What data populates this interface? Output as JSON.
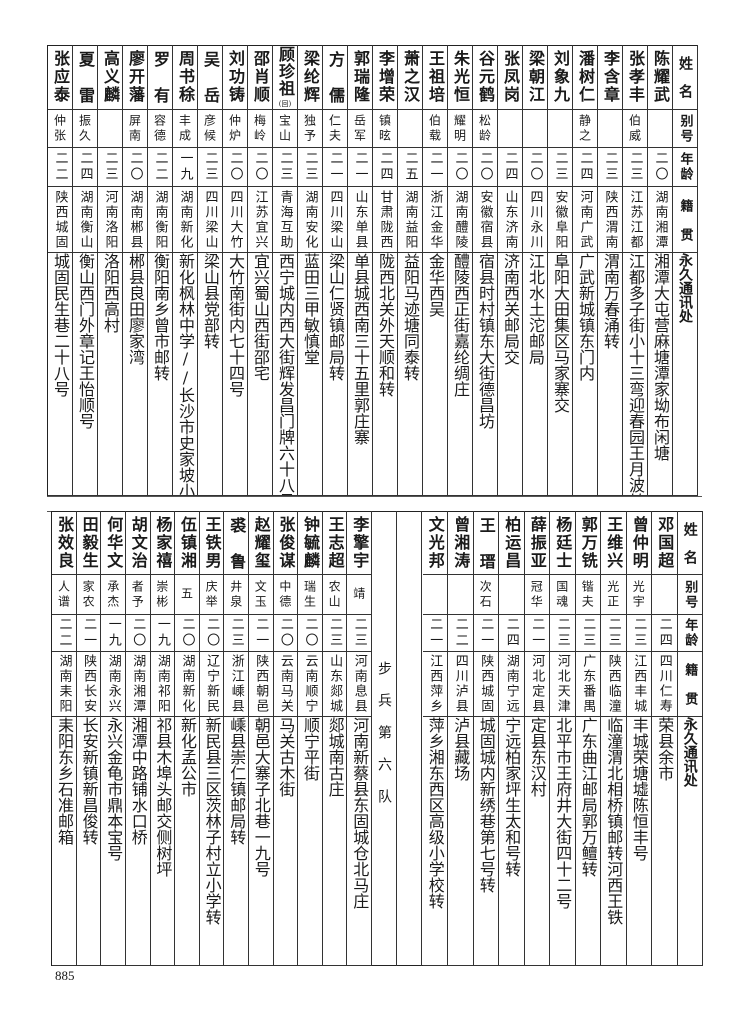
{
  "headers": {
    "name": "姓名",
    "alias": "别号",
    "age": "年龄",
    "origin": "籍贯",
    "address": "永久通讯处"
  },
  "top_rows": [
    {
      "name": "陈耀武",
      "alias": "",
      "age": "二〇",
      "origin": "湖南湘潭",
      "address": "湘潭大屯营麻塘潭家坳布闲塘"
    },
    {
      "name": "张孝丰",
      "alias": "伯威",
      "age": "二三",
      "origin": "江苏江都",
      "address": "江都多子街小十三弯迎春园王月波转"
    },
    {
      "name": "李含章",
      "alias": "",
      "age": "二三",
      "origin": "陕西渭南",
      "address": "渭南万春涌转"
    },
    {
      "name": "潘树仁",
      "alias": "静之",
      "age": "二四",
      "origin": "河南广武",
      "address": "广武新城镇东门内"
    },
    {
      "name": "刘象九",
      "alias": "",
      "age": "二三",
      "origin": "安徽阜阳",
      "address": "阜阳大田集区马家寨交"
    },
    {
      "name": "梁朝江",
      "alias": "",
      "age": "二〇",
      "origin": "四川永川",
      "address": "江北水土沱邮局"
    },
    {
      "name": "张凤岗",
      "alias": "",
      "age": "二四",
      "origin": "山东济南",
      "address": "济南西关邮局交"
    },
    {
      "name": "谷元鹤",
      "alias": "松龄",
      "age": "二〇",
      "origin": "安徽宿县",
      "address": "宿县时村镇东大街德昌坊"
    },
    {
      "name": "朱光恒",
      "alias": "耀明",
      "age": "二〇",
      "origin": "湖南醴陵",
      "address": "醴陵西正街嘉纶绸庄"
    },
    {
      "name": "王祖培",
      "alias": "伯载",
      "age": "二一",
      "origin": "浙江金华",
      "address": "金华西吴"
    },
    {
      "name": "萧之汉",
      "alias": "",
      "age": "二五",
      "origin": "湖南益阳",
      "address": "益阳马迹塘同泰转"
    },
    {
      "name": "李增荣",
      "alias": "镇昡",
      "age": "二四",
      "origin": "甘肃陇西",
      "address": "陇西北关外天顺和转"
    },
    {
      "name": "郭瑞隆",
      "alias": "岳军",
      "age": "二一",
      "origin": "山东单县",
      "address": "单县城西南三十五里郭庄寨"
    },
    {
      "name": "方儒",
      "alias": "仁夫",
      "age": "二一",
      "origin": "四川梁山",
      "address": "梁山仁贤镇邮局转"
    },
    {
      "name": "梁纶辉",
      "alias": "独予",
      "age": "二三",
      "origin": "湖南安化",
      "address": "蓝田三甲敏慎堂"
    },
    {
      "name": "顾珍祖",
      "note": "(回)",
      "alias": "宝山",
      "age": "二三",
      "origin": "青海互助",
      "address": "西宁城内西大街辉发昌门牌六十八号"
    },
    {
      "name": "邵肖顺",
      "alias": "梅岭",
      "age": "二〇",
      "origin": "江苏宜兴",
      "address": "宜兴蜀山西街邵宅"
    },
    {
      "name": "刘功铸",
      "alias": "仲炉",
      "age": "二〇",
      "origin": "四川大竹",
      "address": "大竹南街内七十四号"
    },
    {
      "name": "吴岳",
      "alias": "彦候",
      "age": "二三",
      "origin": "四川梁山",
      "address": "梁山县党部转"
    },
    {
      "name": "周书稌",
      "alias": "丰成",
      "age": "一九",
      "origin": "湖南新化",
      "address": "新化枫林中学//长沙市史家坡小学"
    },
    {
      "name": "罗有",
      "alias": "容德",
      "age": "二二",
      "origin": "湖南衡阳",
      "address": "衡阳南乡曾市邮转"
    },
    {
      "name": "廖开藩",
      "alias": "屏南",
      "age": "二〇",
      "origin": "湖南郴县",
      "address": "郴县良田廖家湾"
    },
    {
      "name": "高义麟",
      "alias": "",
      "age": "二三",
      "origin": "河南洛阳",
      "address": "洛阳西高村"
    },
    {
      "name": "夏雷",
      "alias": "振久",
      "age": "二四",
      "origin": "湖南衡山",
      "address": "衡山西门外章记王怡顺号"
    },
    {
      "name": "张应泰",
      "alias": "仲张",
      "age": "二二",
      "origin": "陕西城固",
      "address": "城固民生巷二十八号"
    }
  ],
  "bottom_right_rows": [
    {
      "name": "邓国超",
      "alias": "",
      "age": "二四",
      "origin": "四川仁寿",
      "address": "荣县余市"
    },
    {
      "name": "曾仲明",
      "alias": "光宇",
      "age": "二三",
      "origin": "江西丰城",
      "address": "丰城荣塘墟陈恒丰号"
    },
    {
      "name": "王维兴",
      "alias": "光正",
      "age": "二三",
      "origin": "陕西临潼",
      "address": "临潼渭北相桥镇邮转河西王铁"
    },
    {
      "name": "郭万铣",
      "alias": "锴夫",
      "age": "二三",
      "origin": "广东番禺",
      "address": "广东曲江邮局郭万鳣转"
    },
    {
      "name": "杨廷士",
      "alias": "国魂",
      "age": "二三",
      "origin": "河北天津",
      "address": "北平市王府井大街四十二号"
    },
    {
      "name": "薛振亚",
      "alias": "冠华",
      "age": "二一",
      "origin": "河北定县",
      "address": "定县东汉村"
    },
    {
      "name": "柏运昌",
      "alias": "",
      "age": "二四",
      "origin": "湖南宁远",
      "address": "宁远柏家坪生太和号转"
    },
    {
      "name": "王瑨",
      "alias": "次石",
      "age": "二一",
      "origin": "陕西城固",
      "address": "城固城内新绣巷第七号转"
    },
    {
      "name": "曾湘涛",
      "alias": "",
      "age": "二二",
      "origin": "四川泸县",
      "address": "泸县藏场"
    },
    {
      "name": "文光邦",
      "alias": "",
      "age": "二一",
      "origin": "江西萍乡",
      "address": "萍乡湘东西区高级小学校转"
    }
  ],
  "unit_label": "步兵第六队",
  "bottom_left_rows": [
    {
      "name": "李擎宇",
      "alias": "靖",
      "age": "二三",
      "origin": "河南息县",
      "address": "河南新蔡县东固城仓北马庄"
    },
    {
      "name": "王志超",
      "alias": "农山",
      "age": "二三",
      "origin": "山东郯城",
      "address": "郯城南古庄"
    },
    {
      "name": "钟毓麟",
      "alias": "瑞生",
      "age": "二〇",
      "origin": "云南顺宁",
      "address": "顺宁平街"
    },
    {
      "name": "张俊谋",
      "alias": "中德",
      "age": "二〇",
      "origin": "云南马关",
      "address": "马关古木街"
    },
    {
      "name": "赵耀玺",
      "alias": "文玉",
      "age": "二一",
      "origin": "陕西朝邑",
      "address": "朝邑大寨子北巷一九号"
    },
    {
      "name": "裘鲁",
      "alias": "井泉",
      "age": "二三",
      "origin": "浙江嵊县",
      "address": "嵊县崇仁镇邮局转"
    },
    {
      "name": "王铁男",
      "alias": "庆举",
      "age": "二〇",
      "origin": "辽宁新民",
      "address": "新民县三区茨林子村立小学转"
    },
    {
      "name": "伍镇湘",
      "alias": "五",
      "age": "二〇",
      "origin": "湖南新化",
      "address": "新化孟公市"
    },
    {
      "name": "杨家禧",
      "alias": "崇彬",
      "age": "一九",
      "origin": "湖南祁阳",
      "address": "祁县木埠头邮交侧树坪"
    },
    {
      "name": "胡文治",
      "alias": "者予",
      "age": "二〇",
      "origin": "湖南湘潭",
      "address": "湘潭中路铺水口桥"
    },
    {
      "name": "何华文",
      "alias": "承杰",
      "age": "一九",
      "origin": "湖南永兴",
      "address": "永兴金龟市鼎本宝号"
    },
    {
      "name": "田毅生",
      "alias": "家农",
      "age": "二一",
      "origin": "陕西长安",
      "address": "长安新镇新昌俊转"
    },
    {
      "name": "张效良",
      "alias": "人谱",
      "age": "二二",
      "origin": "湖南耒阳",
      "address": "耒阳东乡石准邮箱"
    }
  ],
  "page_number": "885"
}
